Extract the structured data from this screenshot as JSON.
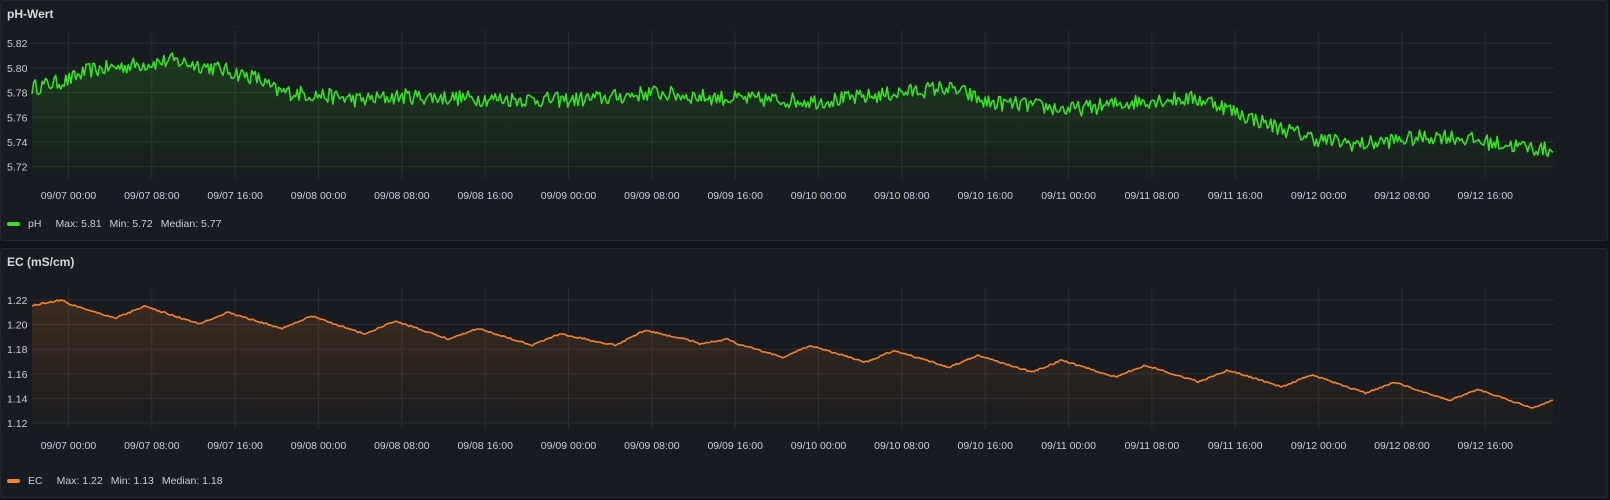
{
  "chart_data": [
    {
      "id": "ph",
      "type": "line",
      "title": "pH-Wert",
      "ylim": [
        5.71,
        5.825
      ],
      "y_ticks": [
        "5.82",
        "5.80",
        "5.78",
        "5.76",
        "5.74",
        "5.72"
      ],
      "x_range": [
        "2023-09-06T20:30",
        "2023-09-12T22:30"
      ],
      "x_ticks": [
        "09/07 00:00",
        "09/07 08:00",
        "09/07 16:00",
        "09/08 00:00",
        "09/08 08:00",
        "09/08 16:00",
        "09/09 00:00",
        "09/09 08:00",
        "09/09 16:00",
        "09/10 00:00",
        "09/10 08:00",
        "09/10 16:00",
        "09/11 00:00",
        "09/11 08:00",
        "09/11 16:00",
        "09/12 00:00",
        "09/12 08:00",
        "09/12 16:00"
      ],
      "grid": true,
      "legend_position": "bottom-left",
      "color": "#35e41f",
      "fill": true,
      "series": [
        {
          "name": "pH",
          "points": [
            [
              "2023-09-06T20:30",
              5.784
            ],
            [
              "2023-09-07T00:00",
              5.79
            ],
            [
              "2023-09-07T02:00",
              5.798
            ],
            [
              "2023-09-07T04:00",
              5.8
            ],
            [
              "2023-09-07T08:00",
              5.804
            ],
            [
              "2023-09-07T10:00",
              5.806
            ],
            [
              "2023-09-07T14:00",
              5.8
            ],
            [
              "2023-09-07T18:00",
              5.792
            ],
            [
              "2023-09-07T20:00",
              5.781
            ],
            [
              "2023-09-08T00:00",
              5.778
            ],
            [
              "2023-09-08T04:00",
              5.774
            ],
            [
              "2023-09-08T08:00",
              5.777
            ],
            [
              "2023-09-08T16:00",
              5.775
            ],
            [
              "2023-09-09T00:00",
              5.774
            ],
            [
              "2023-09-09T04:00",
              5.776
            ],
            [
              "2023-09-09T08:00",
              5.78
            ],
            [
              "2023-09-09T12:00",
              5.777
            ],
            [
              "2023-09-09T16:00",
              5.775
            ],
            [
              "2023-09-10T00:00",
              5.773
            ],
            [
              "2023-09-10T04:00",
              5.776
            ],
            [
              "2023-09-10T08:00",
              5.78
            ],
            [
              "2023-09-10T12:00",
              5.784
            ],
            [
              "2023-09-10T14:00",
              5.78
            ],
            [
              "2023-09-10T16:00",
              5.772
            ],
            [
              "2023-09-10T20:00",
              5.77
            ],
            [
              "2023-09-11T00:00",
              5.766
            ],
            [
              "2023-09-11T04:00",
              5.77
            ],
            [
              "2023-09-11T08:00",
              5.774
            ],
            [
              "2023-09-11T12:00",
              5.775
            ],
            [
              "2023-09-11T14:00",
              5.772
            ],
            [
              "2023-09-11T16:00",
              5.764
            ],
            [
              "2023-09-11T20:00",
              5.752
            ],
            [
              "2023-09-12T00:00",
              5.742
            ],
            [
              "2023-09-12T04:00",
              5.738
            ],
            [
              "2023-09-12T08:00",
              5.742
            ],
            [
              "2023-09-12T12:00",
              5.745
            ],
            [
              "2023-09-12T16:00",
              5.74
            ],
            [
              "2023-09-12T22:30",
              5.733
            ]
          ]
        }
      ],
      "stats": {
        "max": "Max: 5.81",
        "min": "Min: 5.72",
        "median": "Median: 5.77"
      }
    },
    {
      "id": "ec",
      "type": "line",
      "title": "EC (mS/cm)",
      "ylim": [
        1.115,
        1.225
      ],
      "y_ticks": [
        "1.22",
        "1.20",
        "1.18",
        "1.16",
        "1.14",
        "1.12"
      ],
      "x_range": [
        "2023-09-06T20:30",
        "2023-09-12T22:30"
      ],
      "x_ticks": [
        "09/07 00:00",
        "09/07 08:00",
        "09/07 16:00",
        "09/08 00:00",
        "09/08 08:00",
        "09/08 16:00",
        "09/09 00:00",
        "09/09 08:00",
        "09/09 16:00",
        "09/10 00:00",
        "09/10 08:00",
        "09/10 16:00",
        "09/11 00:00",
        "09/11 08:00",
        "09/11 16:00",
        "09/12 00:00",
        "09/12 08:00",
        "09/12 16:00"
      ],
      "grid": true,
      "legend_position": "bottom-left",
      "color": "#f2832a",
      "fill": true,
      "series": [
        {
          "name": "EC",
          "points": [
            [
              "2023-09-06T20:30",
              1.22
            ],
            [
              "2023-09-07T00:00",
              1.212
            ],
            [
              "2023-09-07T08:00",
              1.208
            ],
            [
              "2023-09-07T16:00",
              1.203
            ],
            [
              "2023-09-08T00:00",
              1.2
            ],
            [
              "2023-09-08T04:00",
              1.197
            ],
            [
              "2023-09-08T08:00",
              1.196
            ],
            [
              "2023-09-08T16:00",
              1.19
            ],
            [
              "2023-09-09T00:00",
              1.186
            ],
            [
              "2023-09-09T08:00",
              1.189
            ],
            [
              "2023-09-09T12:00",
              1.19
            ],
            [
              "2023-09-09T16:00",
              1.18
            ],
            [
              "2023-09-10T00:00",
              1.176
            ],
            [
              "2023-09-10T08:00",
              1.172
            ],
            [
              "2023-09-10T16:00",
              1.168
            ],
            [
              "2023-09-11T00:00",
              1.164
            ],
            [
              "2023-09-11T08:00",
              1.16
            ],
            [
              "2023-09-11T16:00",
              1.156
            ],
            [
              "2023-09-12T00:00",
              1.152
            ],
            [
              "2023-09-12T08:00",
              1.146
            ],
            [
              "2023-09-12T16:00",
              1.14
            ],
            [
              "2023-09-12T22:30",
              1.135
            ]
          ]
        }
      ],
      "stats": {
        "max": "Max: 1.22",
        "min": "Min: 1.13",
        "median": "Median: 1.18"
      }
    }
  ]
}
